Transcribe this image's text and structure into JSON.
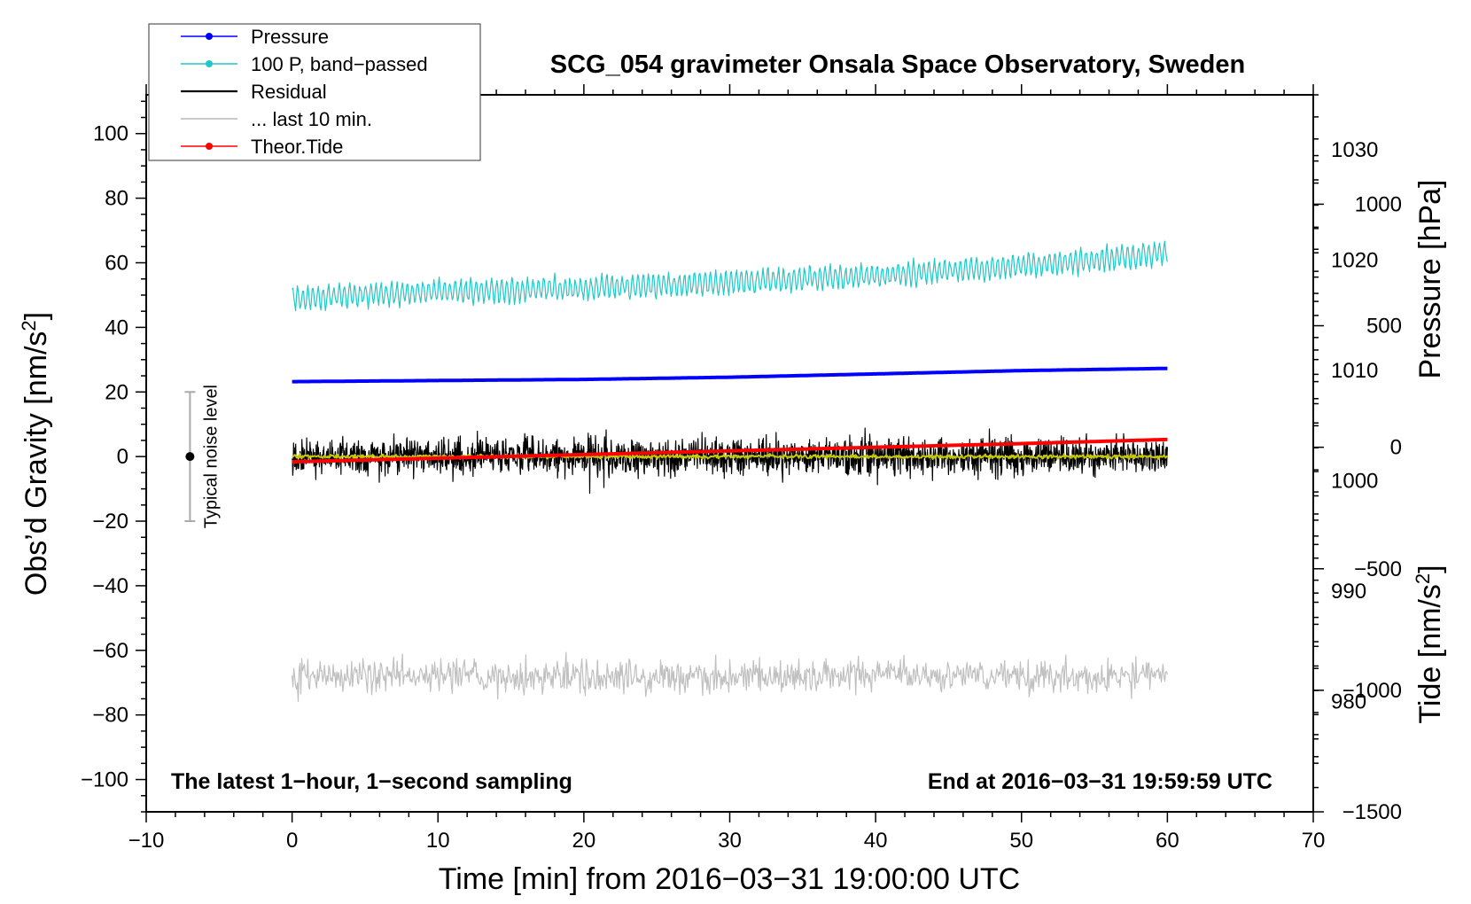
{
  "chart_data": {
    "type": "line",
    "title": "SCG_054 gravimeter Onsala Space Observatory, Sweden",
    "xlabel": "Time [min] from 2016−03−31 19:00:00 UTC",
    "ylabel_left_text": "Obs’d Gravity [nm/s",
    "ylabel_left_sup": "2",
    "ylabel_left_close": "]",
    "ylabel_pressure": "Pressure [hPa]",
    "ylabel_tide_text": "Tide [nm/s",
    "ylabel_tide_sup": "2",
    "ylabel_tide_close": "]",
    "xlim": [
      -10,
      70
    ],
    "ylim": [
      -110,
      112
    ],
    "pressure_lim": [
      970,
      1035
    ],
    "tide_lim": [
      -1500,
      1450
    ],
    "x_ticks": [
      -10,
      0,
      10,
      20,
      30,
      40,
      50,
      60,
      70
    ],
    "x_tick_labels": [
      "−10",
      "0",
      "10",
      "20",
      "30",
      "40",
      "50",
      "60",
      "70"
    ],
    "y_ticks": [
      -100,
      -80,
      -60,
      -40,
      -20,
      0,
      20,
      40,
      60,
      80,
      100
    ],
    "y_tick_labels": [
      "−100",
      "−80",
      "−60",
      "−40",
      "−20",
      "0",
      "20",
      "40",
      "60",
      "80",
      "100"
    ],
    "pressure_ticks": [
      980,
      990,
      1000,
      1010,
      1020,
      1030
    ],
    "pressure_tick_labels": [
      "980",
      "990",
      "1000",
      "1010",
      "1020",
      "1030"
    ],
    "tide_ticks": [
      -1500,
      -1000,
      -500,
      0,
      500,
      1000
    ],
    "tide_tick_labels": [
      "−1500",
      "−1000",
      "−500",
      "0",
      "500",
      "1000"
    ],
    "legend": {
      "placement": "top-left",
      "entries": [
        {
          "label": "Pressure",
          "color": "#0000ff",
          "marker": true
        },
        {
          "label": "100 P, band−passed",
          "color": "#20c8c8",
          "marker": true
        },
        {
          "label": "Residual",
          "color": "#000000",
          "marker": false
        },
        {
          "label": "... last 10 min.",
          "color": "#b8b8b8",
          "marker": false
        },
        {
          "label": "Theor.Tide",
          "color": "#ff0000",
          "marker": true
        }
      ]
    },
    "annotations": {
      "noise_label": "Typical noise level",
      "noise_center": 0,
      "noise_range": [
        -20,
        20
      ],
      "noise_x": -7,
      "bottom_left": "The latest 1−hour, 1−second sampling",
      "bottom_right": "End at 2016−03−31 19:59:59 UTC"
    },
    "series": [
      {
        "name": "Pressure",
        "axis": "pressure",
        "color": "#0000ff",
        "x": [
          0,
          10,
          20,
          30,
          40,
          50,
          60
        ],
        "values": [
          1009.0,
          1009.1,
          1009.2,
          1009.4,
          1009.7,
          1010.0,
          1010.2
        ]
      },
      {
        "name": "100 P, band−passed",
        "axis": "gravity",
        "color": "#20c8c8",
        "x": [
          0,
          10,
          20,
          30,
          40,
          50,
          60
        ],
        "values": [
          49,
          51,
          52,
          54,
          56,
          59,
          63
        ],
        "noise_amplitude": 4
      },
      {
        "name": "Residual",
        "axis": "gravity",
        "color": "#000000",
        "x": [
          0,
          10,
          20,
          30,
          40,
          50,
          60
        ],
        "values": [
          0,
          0,
          0,
          0,
          0,
          0,
          0
        ],
        "noise_amplitude": 9
      },
      {
        "name": "Residual (smoothed)",
        "axis": "gravity",
        "color": "#c8c800",
        "x": [
          0,
          10,
          20,
          30,
          40,
          50,
          60
        ],
        "values": [
          0,
          0,
          0,
          0,
          0,
          0,
          0
        ],
        "noise_amplitude": 1
      },
      {
        "name": "... last 10 min.",
        "axis": "gravity",
        "color": "#c0c0c0",
        "x": [
          0,
          10,
          20,
          30,
          40,
          50,
          60
        ],
        "values": [
          -68,
          -68,
          -68,
          -68,
          -68,
          -68,
          -68
        ],
        "noise_amplitude": 9
      },
      {
        "name": "Theor.Tide",
        "axis": "tide",
        "color": "#ff0000",
        "x": [
          0,
          10,
          20,
          30,
          40,
          50,
          60
        ],
        "values": [
          -60,
          -45,
          -30,
          -15,
          0,
          15,
          32
        ]
      }
    ]
  }
}
